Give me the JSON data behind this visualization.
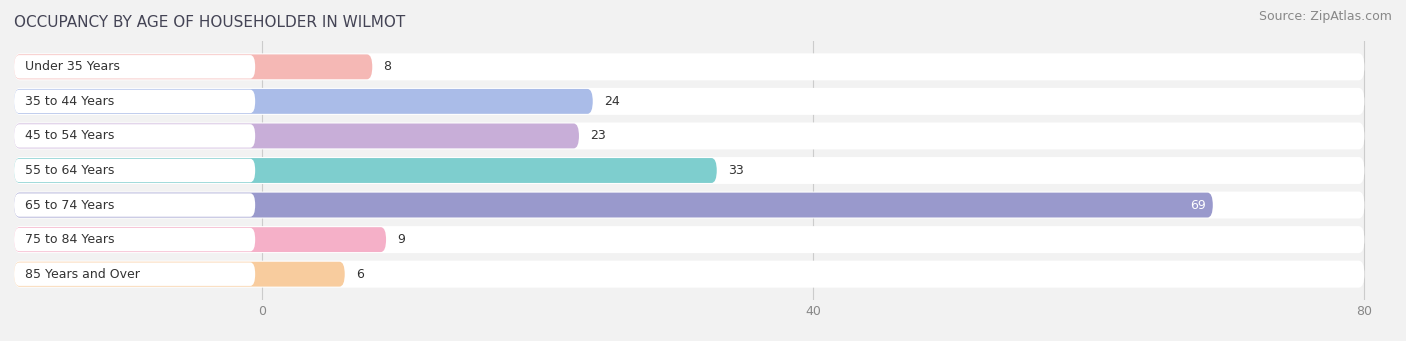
{
  "title": "OCCUPANCY BY AGE OF HOUSEHOLDER IN WILMOT",
  "source": "Source: ZipAtlas.com",
  "categories": [
    "Under 35 Years",
    "35 to 44 Years",
    "45 to 54 Years",
    "55 to 64 Years",
    "65 to 74 Years",
    "75 to 84 Years",
    "85 Years and Over"
  ],
  "values": [
    8,
    24,
    23,
    33,
    69,
    9,
    6
  ],
  "bar_colors": [
    "#f5b8b5",
    "#aabce8",
    "#c8aed8",
    "#7ecece",
    "#9999cc",
    "#f5b0c8",
    "#f8cc9e"
  ],
  "xlim_min": -18,
  "xlim_max": 80,
  "xticks": [
    0,
    40,
    80
  ],
  "bar_height": 0.72,
  "background_color": "#f2f2f2",
  "white_pill_color": "#ffffff",
  "title_fontsize": 11,
  "source_fontsize": 9,
  "label_fontsize": 9,
  "value_fontsize": 9,
  "title_color": "#444455",
  "source_color": "#888888",
  "label_color": "#333333",
  "value_color_dark": "#333333",
  "value_color_light": "#ffffff",
  "grid_color": "#cccccc",
  "tick_color": "#888888"
}
